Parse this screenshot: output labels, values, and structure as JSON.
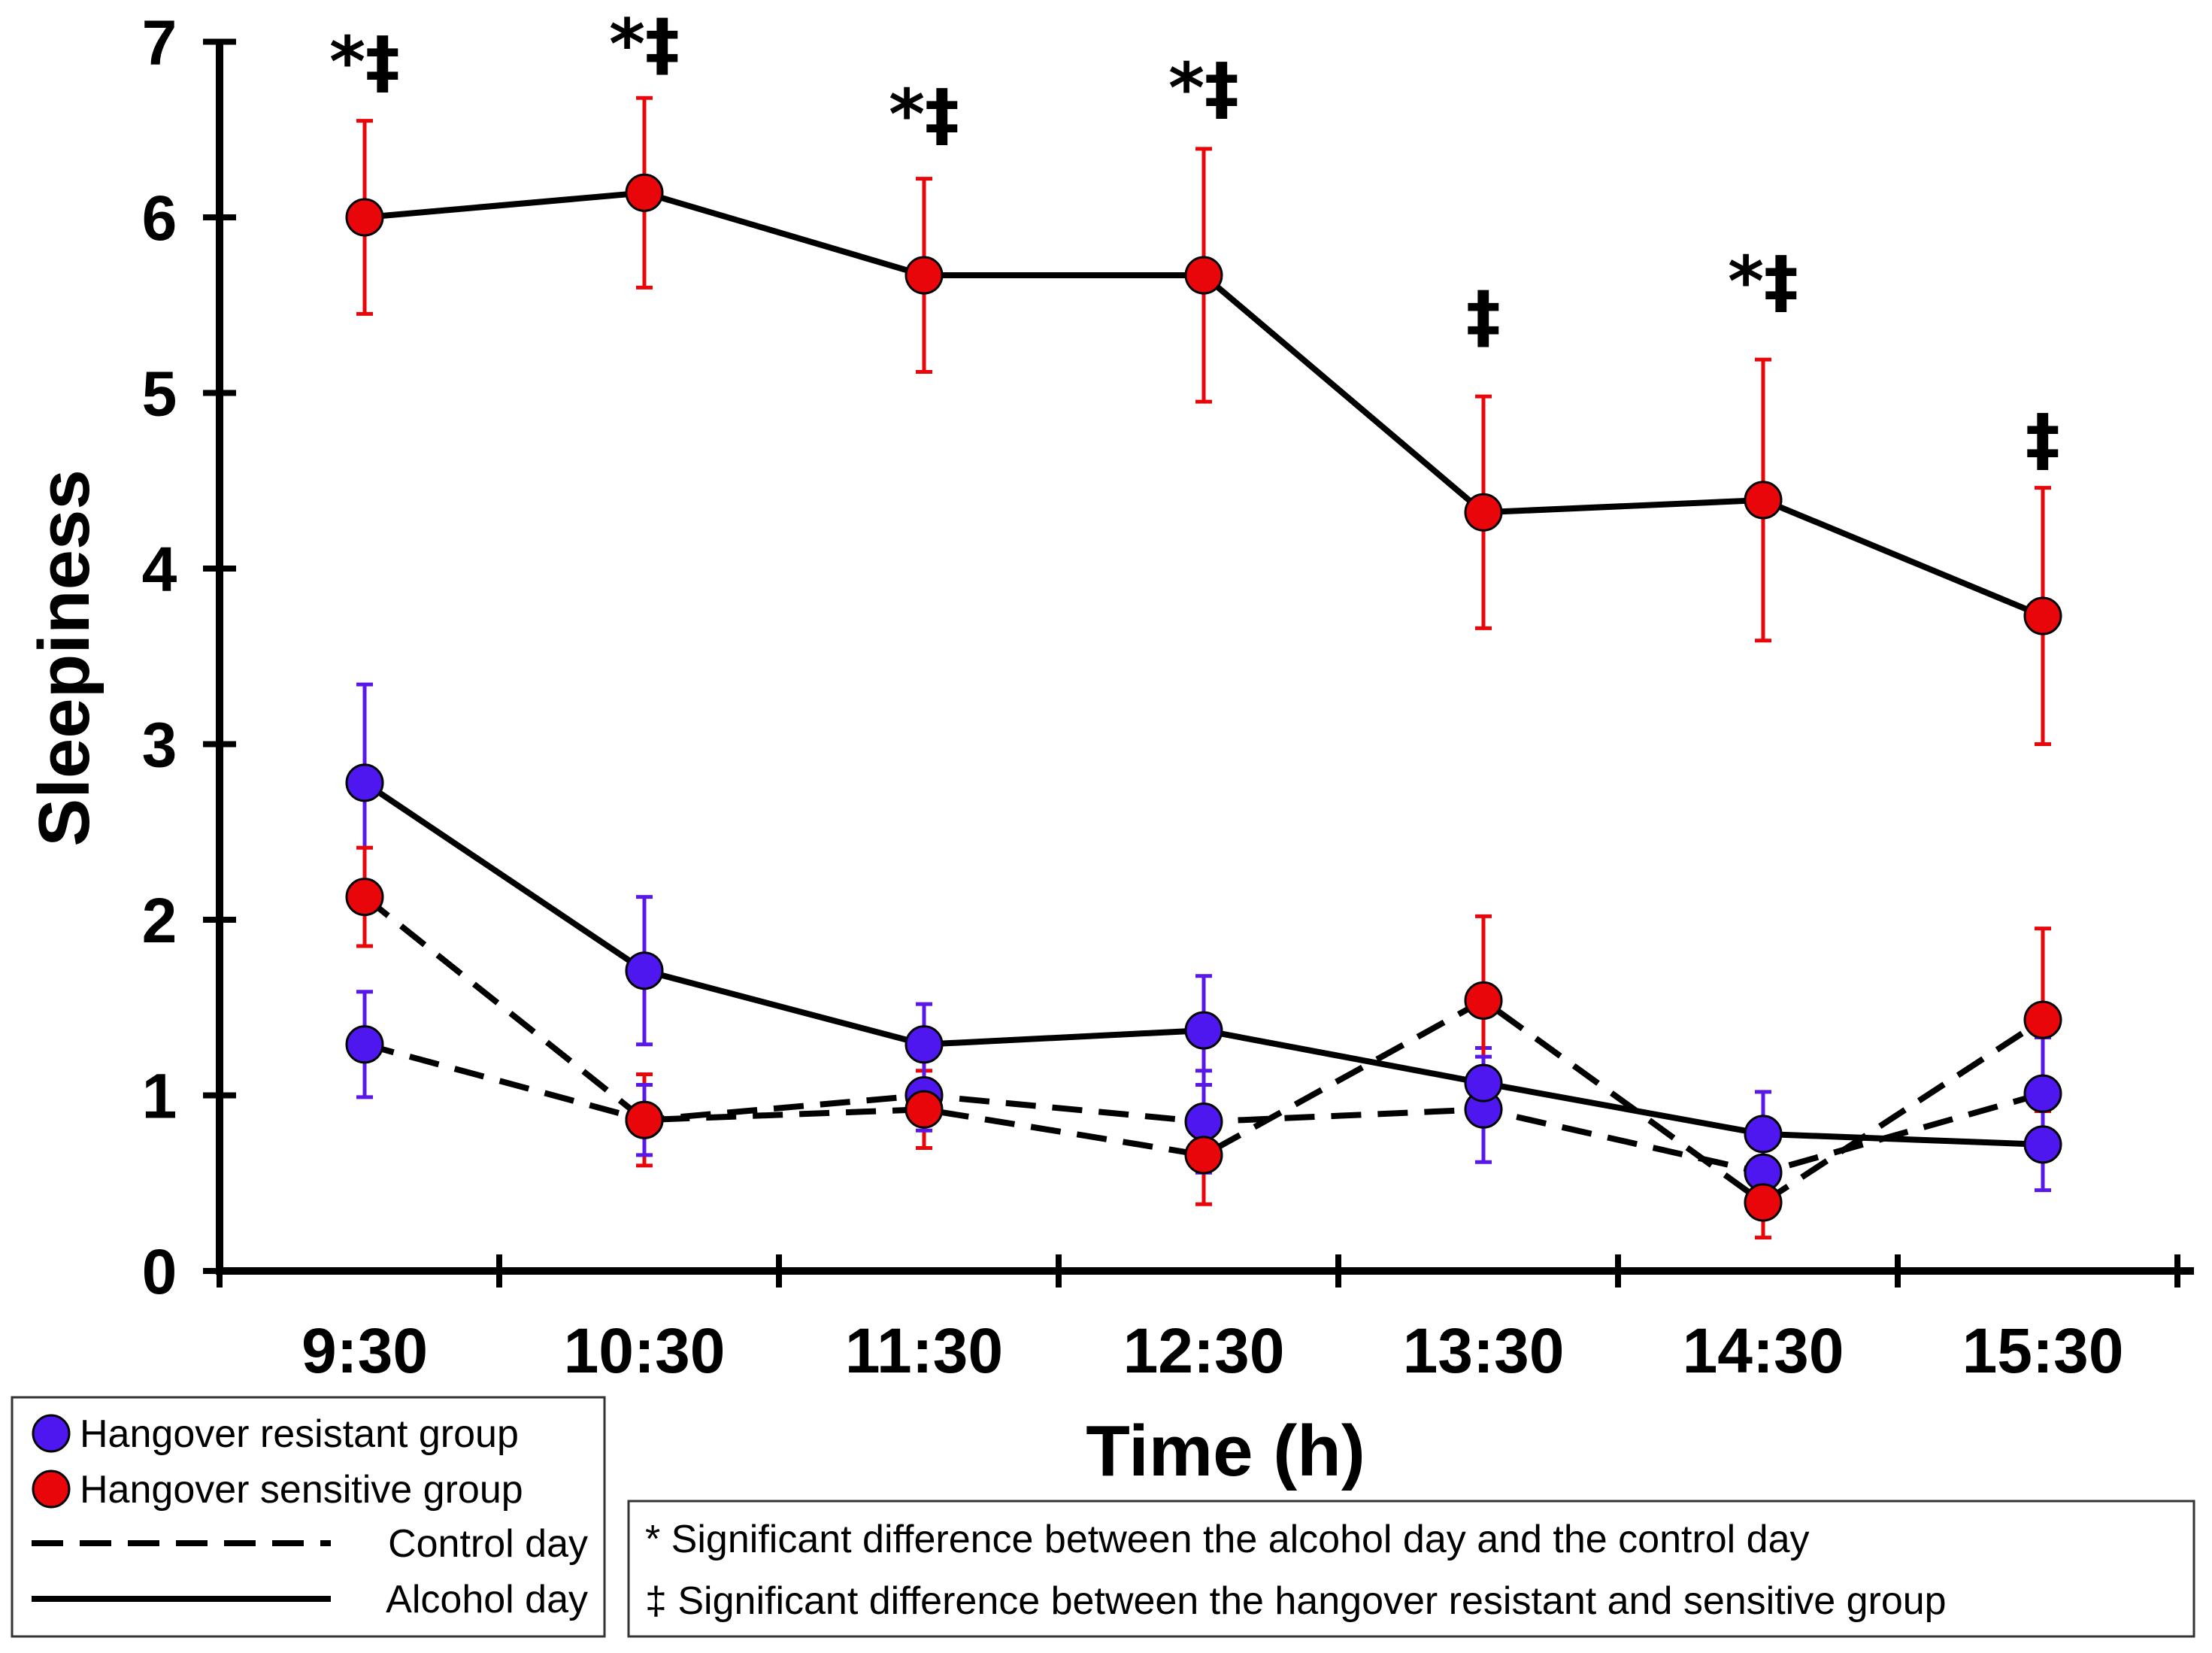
{
  "colors": {
    "resistant": "#4f17f0",
    "sensitive": "#e8060b",
    "resistant_error": "#5a18e8",
    "sensitive_error": "#e8060b",
    "line": "#000000"
  },
  "chart_data": {
    "type": "line",
    "title": "",
    "xlabel": "Time (h)",
    "ylabel": "Sleepiness",
    "ylim": [
      0,
      7
    ],
    "yticks": [
      0,
      1,
      2,
      3,
      4,
      5,
      6,
      7
    ],
    "categories": [
      "9:30",
      "10:30",
      "11:30",
      "12:30",
      "13:30",
      "14:30",
      "15:30"
    ],
    "series": [
      {
        "name": "Hangover sensitive group - Alcohol day",
        "group": "sensitive",
        "day": "alcohol",
        "values": [
          6.0,
          6.14,
          5.67,
          5.67,
          4.32,
          4.39,
          3.73
        ],
        "errors": [
          0.55,
          0.54,
          0.55,
          0.72,
          0.66,
          0.8,
          0.73
        ]
      },
      {
        "name": "Hangover resistant group - Alcohol day",
        "group": "resistant",
        "day": "alcohol",
        "values": [
          2.78,
          1.71,
          1.29,
          1.37,
          1.07,
          0.78,
          0.72
        ],
        "errors": [
          0.56,
          0.42,
          0.23,
          0.31,
          0.2,
          0.24,
          0.26
        ]
      },
      {
        "name": "Hangover sensitive group - Control day",
        "group": "sensitive",
        "day": "control",
        "values": [
          2.13,
          0.86,
          0.92,
          0.66,
          1.54,
          0.39,
          1.43
        ],
        "errors": [
          0.28,
          0.26,
          0.22,
          0.28,
          0.48,
          0.2,
          0.52
        ]
      },
      {
        "name": "Hangover resistant group - Control day",
        "group": "resistant",
        "day": "control",
        "values": [
          1.29,
          0.86,
          1.0,
          0.85,
          0.92,
          0.56,
          1.01
        ],
        "errors": [
          0.3,
          0.2,
          0.2,
          0.29,
          0.3,
          0.2,
          0.32
        ]
      }
    ],
    "annotations": [
      "*‡",
      "*‡",
      "*‡",
      "*‡",
      "‡",
      "*‡",
      "‡"
    ],
    "annotation_y": [
      6.75,
      6.85,
      6.45,
      6.6,
      5.3,
      5.5,
      4.6
    ],
    "legend": {
      "placement": "bottom-left",
      "items": [
        {
          "label": "Hangover resistant group",
          "kind": "marker",
          "group": "resistant"
        },
        {
          "label": "Hangover sensitive group",
          "kind": "marker",
          "group": "sensitive"
        },
        {
          "label": "Control day",
          "kind": "dashed"
        },
        {
          "label": "Alcohol day",
          "kind": "solid"
        }
      ]
    },
    "notes": [
      "* Significant difference between the alcohol day and the control day",
      "‡ Significant difference between the hangover resistant and sensitive group"
    ]
  }
}
